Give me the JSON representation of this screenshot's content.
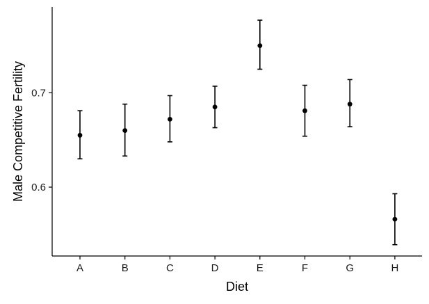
{
  "chart_data": {
    "type": "scatter",
    "subtype": "point-with-error-bars",
    "title": "",
    "xlabel": "Diet",
    "ylabel": "Male Competitive Fertility",
    "categories": [
      "A",
      "B",
      "C",
      "D",
      "E",
      "F",
      "G",
      "H"
    ],
    "values": [
      0.655,
      0.66,
      0.672,
      0.685,
      0.75,
      0.681,
      0.688,
      0.566
    ],
    "lower": [
      0.63,
      0.633,
      0.648,
      0.663,
      0.725,
      0.654,
      0.664,
      0.539
    ],
    "upper": [
      0.681,
      0.688,
      0.697,
      0.707,
      0.777,
      0.708,
      0.714,
      0.593
    ],
    "ylim": [
      0.527,
      0.791
    ],
    "yticks": [
      0.6,
      0.7
    ],
    "ytick_labels": [
      "0.6",
      "0.7"
    ],
    "grid": false,
    "legend": "none",
    "colors": {
      "points": "#000000",
      "error_bars": "#000000",
      "axes": "#000000"
    }
  }
}
